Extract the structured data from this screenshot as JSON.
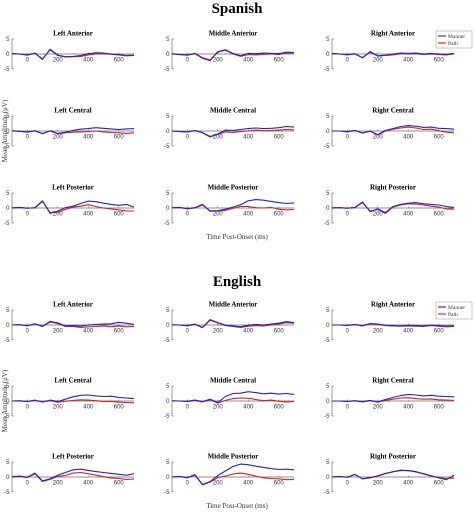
{
  "colors": {
    "manner": "#2323c4",
    "path": "#cc2222",
    "axis": "#555555"
  },
  "chart_data": [
    {
      "type": "line",
      "title": "Spanish",
      "xlabel": "Time Post-Onset (ms)",
      "ylabel": "Mean Amplitude (μV)",
      "xlim": [
        -100,
        700
      ],
      "ylim": [
        -5,
        5
      ],
      "x_ticks": [
        0,
        200,
        400,
        600
      ],
      "y_ticks": [
        -5,
        0,
        5
      ],
      "legend": {
        "entries": [
          "Manner",
          "Path"
        ],
        "placement": "top-right"
      },
      "x": [
        -100,
        -50,
        0,
        50,
        100,
        150,
        200,
        250,
        300,
        350,
        400,
        450,
        500,
        550,
        600,
        650,
        700
      ],
      "panels": [
        {
          "title": "Left Anterior",
          "series": [
            {
              "name": "Manner",
              "values": [
                0.1,
                0,
                -0.3,
                0.3,
                -1.8,
                1.6,
                -0.4,
                -0.9,
                -0.8,
                -0.5,
                0.1,
                0.4,
                0.3,
                0,
                -0.2,
                -0.5,
                -0.4
              ]
            },
            {
              "name": "Path",
              "values": [
                0.2,
                0,
                -0.4,
                0.2,
                -1.6,
                1.4,
                -0.5,
                -1,
                -0.9,
                -0.8,
                -0.3,
                0,
                0.1,
                -0.1,
                -0.3,
                -0.6,
                -0.5
              ]
            }
          ]
        },
        {
          "title": "Middle Anterior",
          "series": [
            {
              "name": "Manner",
              "values": [
                0.1,
                -0.2,
                -0.4,
                0.1,
                -1.4,
                -2.2,
                0.8,
                1.4,
                0.2,
                -0.6,
                0.2,
                0.1,
                0.3,
                0.2,
                0.1,
                0.6,
                0.5
              ]
            },
            {
              "name": "Path",
              "values": [
                0,
                -0.2,
                -0.3,
                0.2,
                -1.2,
                -2,
                0.6,
                1.3,
                0,
                -0.8,
                -0.2,
                -0.3,
                -0.1,
                0,
                -0.2,
                0.3,
                0.4
              ]
            }
          ]
        },
        {
          "title": "Right Anterior",
          "series": [
            {
              "name": "Manner",
              "values": [
                0.2,
                0,
                -0.2,
                0.1,
                -1.3,
                0.8,
                -0.6,
                -0.4,
                0,
                0.3,
                0.2,
                0.3,
                0,
                0.2,
                0,
                -0.1,
                0.2
              ]
            },
            {
              "name": "Path",
              "values": [
                0.1,
                0,
                -0.3,
                0,
                -1.2,
                0.6,
                -0.7,
                -0.5,
                -0.3,
                0.1,
                0,
                0.1,
                -0.2,
                0,
                -0.2,
                -0.3,
                0
              ]
            }
          ]
        },
        {
          "title": "Left Central",
          "series": [
            {
              "name": "Manner",
              "values": [
                0.1,
                -0.1,
                -0.3,
                0.1,
                -0.9,
                0.1,
                -0.8,
                -0.4,
                0.2,
                0.6,
                0.8,
                1.1,
                0.9,
                0.7,
                0.5,
                0.7,
                0.8
              ]
            },
            {
              "name": "Path",
              "values": [
                0,
                -0.1,
                -0.4,
                0,
                -0.8,
                0,
                -0.9,
                -0.6,
                -0.4,
                -0.3,
                -0.2,
                0,
                -0.3,
                -0.5,
                -0.6,
                -0.8,
                -0.6
              ]
            }
          ]
        },
        {
          "title": "Middle Central",
          "series": [
            {
              "name": "Manner",
              "values": [
                0,
                -0.2,
                -0.3,
                0.2,
                -0.6,
                -2,
                -1,
                0.3,
                0.2,
                0.5,
                0.8,
                1,
                0.8,
                0.9,
                1.1,
                1.5,
                1.3
              ]
            },
            {
              "name": "Path",
              "values": [
                0,
                -0.2,
                -0.3,
                0.1,
                -0.5,
                -1.8,
                -1.1,
                -0.3,
                -0.5,
                -0.2,
                0,
                0.3,
                0.1,
                0.2,
                0.3,
                0.5,
                0.4
              ]
            }
          ]
        },
        {
          "title": "Right Central",
          "series": [
            {
              "name": "Manner",
              "values": [
                0,
                0,
                -0.2,
                0.2,
                -0.7,
                0,
                -1.2,
                0.2,
                0.8,
                1.5,
                1.8,
                1.6,
                1.2,
                1.3,
                0.9,
                0.8,
                0.6
              ]
            },
            {
              "name": "Path",
              "values": [
                0,
                0,
                -0.3,
                0.1,
                -0.6,
                -0.1,
                -1.3,
                0,
                0.6,
                1,
                1.3,
                1,
                0.5,
                0.6,
                0.1,
                -0.4,
                -0.6
              ]
            }
          ]
        },
        {
          "title": "Left Posterior",
          "series": [
            {
              "name": "Manner",
              "values": [
                0,
                0.2,
                -0.1,
                0.1,
                2.4,
                -1.8,
                -1,
                0.1,
                0.6,
                1.5,
                2.3,
                2.1,
                1.6,
                1.2,
                0.9,
                1.2,
                0.3
              ]
            },
            {
              "name": "Path",
              "values": [
                0.1,
                0.2,
                0,
                0,
                2.2,
                -1.5,
                -1.4,
                -0.5,
                0.3,
                0.6,
                1.1,
                0.5,
                0,
                -0.3,
                -0.6,
                -1,
                -1
              ]
            }
          ]
        },
        {
          "title": "Middle Posterior",
          "series": [
            {
              "name": "Manner",
              "values": [
                0.1,
                0.2,
                -0.2,
                0.1,
                1.2,
                -1.1,
                -0.9,
                -0.4,
                0.3,
                1.1,
                2.4,
                2.8,
                2.6,
                2.2,
                1.8,
                1.5,
                1.7
              ]
            },
            {
              "name": "Path",
              "values": [
                0,
                0.2,
                -0.3,
                0,
                1,
                -0.9,
                -1,
                -0.8,
                -0.1,
                0.5,
                0.5,
                0.1,
                0,
                0.2,
                -0.4,
                -0.6,
                -0.5
              ]
            }
          ]
        },
        {
          "title": "Right Posterior",
          "series": [
            {
              "name": "Manner",
              "values": [
                0,
                0.1,
                -0.1,
                0.2,
                2,
                -1.2,
                -0.3,
                -1.5,
                0.5,
                1.2,
                1.6,
                1.8,
                1.4,
                1.2,
                1,
                0.5,
                0.2
              ]
            },
            {
              "name": "Path",
              "values": [
                0.1,
                0.1,
                0,
                0.1,
                1.8,
                -1,
                -0.5,
                -1.8,
                0.3,
                1,
                1.4,
                1.3,
                1,
                0.6,
                0.3,
                -0.3,
                -0.4
              ]
            }
          ]
        }
      ]
    },
    {
      "type": "line",
      "title": "English",
      "xlabel": "Time Post-Onset (ms)",
      "ylabel": "Mean Amplitude (μV)",
      "xlim": [
        -100,
        700
      ],
      "ylim": [
        -5,
        5
      ],
      "x_ticks": [
        0,
        200,
        400,
        600
      ],
      "y_ticks": [
        -5,
        0,
        5
      ],
      "legend": {
        "entries": [
          "Manner",
          "Path"
        ],
        "placement": "top-right"
      },
      "x": [
        -100,
        -50,
        0,
        50,
        100,
        150,
        200,
        250,
        300,
        350,
        400,
        450,
        500,
        550,
        600,
        650,
        700
      ],
      "panels": [
        {
          "title": "Left Anterior",
          "series": [
            {
              "name": "Manner",
              "values": [
                0,
                0.1,
                -0.2,
                0.4,
                -0.4,
                1.2,
                0.7,
                -0.3,
                -0.2,
                -0.4,
                0,
                0.2,
                0.3,
                0.4,
                0.9,
                0.6,
                0.2
              ]
            },
            {
              "name": "Path",
              "values": [
                0,
                0.1,
                -0.3,
                0.3,
                -0.5,
                1,
                0.5,
                -0.5,
                -0.5,
                -0.8,
                -0.6,
                -0.5,
                -0.3,
                -0.6,
                -0.3,
                -0.6,
                -0.5
              ]
            }
          ]
        },
        {
          "title": "Middle Anterior",
          "series": [
            {
              "name": "Manner",
              "values": [
                0.1,
                0,
                -0.2,
                0.3,
                -0.8,
                1.8,
                0.8,
                0,
                -0.3,
                -0.6,
                -0.1,
                0.2,
                0,
                0.3,
                0.6,
                1.1,
                0.8
              ]
            },
            {
              "name": "Path",
              "values": [
                0,
                0,
                -0.3,
                0.2,
                -0.9,
                1.6,
                0.7,
                -0.2,
                -0.5,
                -0.8,
                -0.4,
                -0.2,
                -0.3,
                0,
                0.3,
                0.8,
                0.6
              ]
            }
          ]
        },
        {
          "title": "Right Anterior",
          "series": [
            {
              "name": "Manner",
              "values": [
                0,
                0,
                -0.1,
                0.2,
                -0.2,
                0.5,
                0.3,
                -0.1,
                -0.2,
                -0.3,
                -0.1,
                -0.2,
                -0.3,
                0,
                -0.2,
                -0.4,
                -0.3
              ]
            },
            {
              "name": "Path",
              "values": [
                0,
                0,
                -0.2,
                0.1,
                -0.3,
                0.4,
                0.2,
                -0.2,
                -0.3,
                -0.4,
                -0.3,
                -0.4,
                -0.5,
                -0.2,
                -0.4,
                -0.6,
                -0.5
              ]
            }
          ]
        },
        {
          "title": "Left Central",
          "series": [
            {
              "name": "Manner",
              "values": [
                0,
                0.1,
                -0.2,
                0.3,
                -0.3,
                0.3,
                -0.2,
                0.6,
                1.4,
                1.9,
                2,
                1.7,
                1.5,
                1.6,
                1.2,
                1,
                0.8
              ]
            },
            {
              "name": "Path",
              "values": [
                0,
                0,
                -0.2,
                0.2,
                -0.3,
                0.1,
                -0.4,
                -0.1,
                0.2,
                0.4,
                0.3,
                0.1,
                -0.2,
                -0.1,
                -0.4,
                -0.5,
                -0.6
              ]
            }
          ]
        },
        {
          "title": "Middle Central",
          "series": [
            {
              "name": "Manner",
              "values": [
                0.1,
                0,
                -0.1,
                0.3,
                -0.2,
                0.6,
                -0.5,
                1.5,
                2.5,
                2.6,
                3.1,
                2.8,
                2.4,
                2.6,
                2.3,
                2.5,
                2.2
              ]
            },
            {
              "name": "Path",
              "values": [
                0,
                0,
                -0.2,
                0.2,
                -0.3,
                0.4,
                -0.7,
                0.2,
                0.8,
                1,
                0.9,
                0.5,
                0.1,
                0.3,
                -0.1,
                -0.3,
                -0.2
              ]
            }
          ]
        },
        {
          "title": "Right Central",
          "series": [
            {
              "name": "Manner",
              "values": [
                0,
                0,
                -0.1,
                0.1,
                -0.2,
                0.2,
                -0.3,
                0.5,
                1.2,
                1.8,
                2.2,
                2,
                1.7,
                1.9,
                1.6,
                1.5,
                1.4
              ]
            },
            {
              "name": "Path",
              "values": [
                0,
                0,
                -0.2,
                0,
                -0.3,
                0.1,
                -0.4,
                0.2,
                0.6,
                1,
                1.1,
                0.8,
                0.6,
                0.7,
                0.4,
                0.3,
                0.2
              ]
            }
          ]
        },
        {
          "title": "Left Posterior",
          "series": [
            {
              "name": "Manner",
              "values": [
                0.1,
                0.3,
                -0.1,
                1.3,
                -1.3,
                -0.6,
                0.6,
                1.5,
                2.4,
                2.6,
                2.2,
                1.8,
                1.5,
                1.2,
                0.9,
                0.6,
                1.1
              ]
            },
            {
              "name": "Path",
              "values": [
                0,
                0.2,
                -0.2,
                1.1,
                -1.5,
                -0.8,
                0.2,
                0.5,
                1.3,
                1.5,
                1.1,
                0.6,
                0.1,
                -0.3,
                -0.5,
                -0.8,
                -0.7
              ]
            }
          ]
        },
        {
          "title": "Middle Posterior",
          "series": [
            {
              "name": "Manner",
              "values": [
                0,
                0.2,
                -0.2,
                0.8,
                -2.5,
                -1.5,
                0.5,
                2,
                3.5,
                4.3,
                4.1,
                3.6,
                3.2,
                2.8,
                2.5,
                2.6,
                2.4
              ]
            },
            {
              "name": "Path",
              "values": [
                0,
                0.2,
                -0.3,
                0.6,
                -2.6,
                -1.7,
                -0.2,
                0.3,
                1,
                1.3,
                0.9,
                0.3,
                -0.3,
                -0.5,
                -0.6,
                -0.9,
                -0.8
              ]
            }
          ]
        },
        {
          "title": "Right Posterior",
          "series": [
            {
              "name": "Manner",
              "values": [
                0,
                0.2,
                -0.1,
                0.9,
                -0.6,
                -0.2,
                0.4,
                1.2,
                1.7,
                2.3,
                2.1,
                1.8,
                1.1,
                0.4,
                -0.3,
                -0.9,
                0.6
              ]
            },
            {
              "name": "Path",
              "values": [
                0,
                0.2,
                -0.1,
                0.8,
                -0.6,
                -0.3,
                0.3,
                1.1,
                1.8,
                2.1,
                2.2,
                1.7,
                1,
                0.3,
                -0.2,
                -0.5,
                -0.4
              ]
            }
          ]
        }
      ]
    }
  ]
}
